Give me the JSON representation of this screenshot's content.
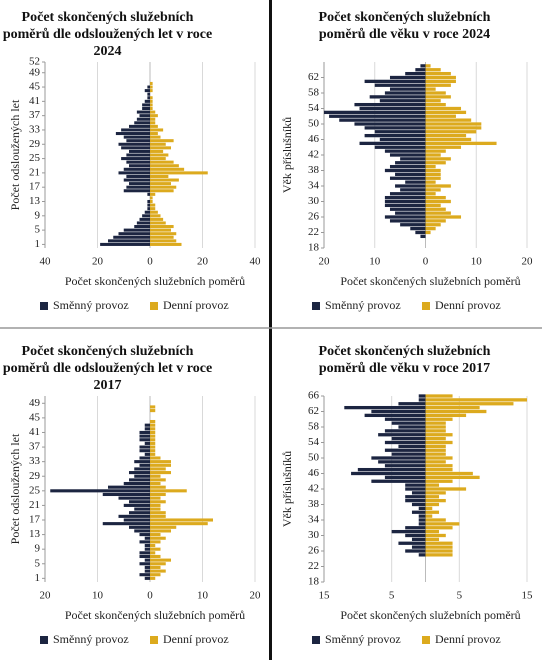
{
  "chart_data": [
    {
      "type": "bar",
      "orientation": "horizontal",
      "title": "Počet skončených služebních poměrů dle odsloužených let v roce 2024",
      "x_label": "Počet skončených služebních poměrů",
      "y_label": "Počet odsloužených let",
      "categories": [
        1,
        2,
        3,
        4,
        5,
        6,
        7,
        8,
        9,
        10,
        11,
        12,
        13,
        14,
        15,
        16,
        17,
        18,
        19,
        20,
        21,
        22,
        23,
        24,
        25,
        26,
        27,
        28,
        29,
        30,
        31,
        32,
        33,
        34,
        35,
        36,
        37,
        38,
        39,
        40,
        41,
        42,
        43,
        44,
        45,
        46
      ],
      "series": [
        {
          "name": "Směnný provoz",
          "color": "#1c2541",
          "values": [
            -19,
            -16,
            -14,
            -12,
            -10,
            -6,
            -5,
            -4,
            -3,
            -2,
            -1,
            -1,
            -1,
            0,
            -1,
            -10,
            -9,
            -8,
            -10,
            -9,
            -12,
            -10,
            -8,
            -9,
            -11,
            -9,
            -8,
            -11,
            -12,
            -9,
            -10,
            -13,
            -11,
            -8,
            -6,
            -5,
            -4,
            -5,
            -3,
            -3,
            -2,
            -1,
            -1,
            -2,
            -1,
            0
          ]
        },
        {
          "name": "Denní provoz",
          "color": "#dcaa1e",
          "values": [
            12,
            10,
            9,
            10,
            8,
            9,
            6,
            5,
            4,
            3,
            2,
            2,
            1,
            1,
            2,
            9,
            10,
            8,
            11,
            7,
            22,
            13,
            11,
            9,
            6,
            7,
            5,
            8,
            6,
            9,
            4,
            3,
            5,
            3,
            2,
            2,
            3,
            2,
            1,
            1,
            1,
            1,
            0,
            1,
            1,
            1
          ]
        }
      ],
      "xlim": [
        -40,
        40
      ],
      "xticks": [
        {
          "value": -40,
          "label": "40"
        },
        {
          "value": -20,
          "label": "20"
        },
        0,
        20,
        40
      ],
      "ylim": [
        0,
        52
      ],
      "yticks": [
        1,
        5,
        9,
        13,
        17,
        21,
        25,
        29,
        33,
        37,
        41,
        45,
        49,
        52
      ],
      "grid": true
    },
    {
      "type": "bar",
      "orientation": "horizontal",
      "title": "Počet skončených služebních poměrů dle věku v roce 2024",
      "x_label": "Počet skončených služebních poměrů",
      "y_label": "Věk příslušníků",
      "categories": [
        21,
        22,
        23,
        24,
        25,
        26,
        27,
        28,
        29,
        30,
        31,
        32,
        33,
        34,
        35,
        36,
        37,
        38,
        39,
        40,
        41,
        42,
        43,
        44,
        45,
        46,
        47,
        48,
        49,
        50,
        51,
        52,
        53,
        54,
        55,
        56,
        57,
        58,
        59,
        60,
        61,
        62,
        63,
        64,
        65
      ],
      "series": [
        {
          "name": "Směnný provoz",
          "color": "#1c2541",
          "values": [
            -1,
            -2,
            -3,
            -5,
            -7,
            -8,
            -6,
            -7,
            -8,
            -8,
            -8,
            -7,
            -5,
            -6,
            -4,
            -7,
            -6,
            -8,
            -7,
            -6,
            -5,
            -7,
            -8,
            -10,
            -13,
            -9,
            -12,
            -10,
            -12,
            -14,
            -17,
            -19,
            -20,
            -13,
            -14,
            -9,
            -11,
            -8,
            -7,
            -10,
            -12,
            -7,
            -4,
            -2,
            -1
          ]
        },
        {
          "name": "Denní provoz",
          "color": "#dcaa1e",
          "values": [
            0,
            1,
            2,
            3,
            4,
            7,
            5,
            4,
            3,
            5,
            4,
            2,
            3,
            5,
            2,
            3,
            3,
            3,
            2,
            4,
            5,
            3,
            4,
            7,
            14,
            9,
            8,
            10,
            11,
            11,
            9,
            6,
            8,
            7,
            4,
            3,
            5,
            4,
            2,
            5,
            6,
            6,
            5,
            3,
            1
          ]
        }
      ],
      "xlim": [
        -20,
        20
      ],
      "xticks": [
        {
          "value": -20,
          "label": "20"
        },
        {
          "value": -10,
          "label": "10"
        },
        0,
        10,
        20
      ],
      "ylim": [
        18,
        66
      ],
      "yticks": [
        18,
        22,
        26,
        30,
        34,
        38,
        42,
        46,
        50,
        54,
        58,
        62
      ],
      "grid": true
    },
    {
      "type": "bar",
      "orientation": "horizontal",
      "title": "Počet skončených služebních poměrů dle odsloužených let v roce 2017",
      "x_label": "Počet skončených služebních poměrů",
      "y_label": "Počet odsloužených let",
      "categories": [
        1,
        2,
        3,
        4,
        5,
        6,
        7,
        8,
        9,
        10,
        11,
        12,
        13,
        14,
        15,
        16,
        17,
        18,
        19,
        20,
        21,
        22,
        23,
        24,
        25,
        26,
        27,
        28,
        29,
        30,
        31,
        32,
        33,
        34,
        35,
        36,
        37,
        38,
        39,
        40,
        41,
        42,
        43,
        44,
        45,
        46,
        47,
        48
      ],
      "series": [
        {
          "name": "Směnný provoz",
          "color": "#1c2541",
          "values": [
            -1,
            -2,
            -1,
            -1,
            -2,
            -1,
            -2,
            -2,
            -1,
            -1,
            -2,
            -1,
            -2,
            -3,
            -4,
            -9,
            -5,
            -6,
            -4,
            -3,
            -5,
            -4,
            -6,
            -9,
            -19,
            -8,
            -5,
            -4,
            -3,
            -4,
            -3,
            -2,
            -3,
            -2,
            -1,
            -2,
            -2,
            -1,
            -2,
            -2,
            -2,
            -1,
            -1,
            0,
            0,
            0,
            0,
            0
          ]
        },
        {
          "name": "Denní provoz",
          "color": "#dcaa1e",
          "values": [
            1,
            2,
            3,
            2,
            3,
            4,
            2,
            1,
            2,
            1,
            2,
            3,
            2,
            4,
            5,
            11,
            12,
            3,
            3,
            2,
            2,
            3,
            2,
            3,
            7,
            3,
            2,
            3,
            2,
            4,
            3,
            4,
            4,
            2,
            1,
            1,
            1,
            1,
            1,
            1,
            1,
            1,
            1,
            1,
            0,
            0,
            1,
            1
          ]
        }
      ],
      "xlim": [
        -20,
        20
      ],
      "xticks": [
        {
          "value": -20,
          "label": "20"
        },
        {
          "value": -10,
          "label": "10"
        },
        0,
        10,
        20
      ],
      "ylim": [
        0,
        51
      ],
      "yticks": [
        1,
        5,
        9,
        13,
        17,
        21,
        25,
        29,
        33,
        37,
        41,
        45,
        49
      ],
      "grid": true
    },
    {
      "type": "bar",
      "orientation": "horizontal",
      "title": "Počet skončených služebních poměrů dle věku v roce 2017",
      "x_label": "Počet skončených služebních poměrů",
      "y_label": "Věk příslušníků",
      "categories": [
        25,
        26,
        27,
        28,
        29,
        30,
        31,
        32,
        33,
        34,
        35,
        36,
        37,
        38,
        39,
        40,
        41,
        42,
        43,
        44,
        45,
        46,
        47,
        48,
        49,
        50,
        51,
        52,
        53,
        54,
        55,
        56,
        57,
        58,
        59,
        60,
        61,
        62,
        63,
        64,
        65,
        66
      ],
      "series": [
        {
          "name": "Směnný provoz",
          "color": "#1c2541",
          "values": [
            -1,
            -3,
            -2,
            -4,
            -2,
            -3,
            -5,
            -3,
            -1,
            -1,
            -1,
            -2,
            -1,
            -2,
            -3,
            -3,
            -2,
            -3,
            -3,
            -8,
            -6,
            -11,
            -10,
            -6,
            -7,
            -8,
            -5,
            -6,
            -4,
            -6,
            -5,
            -7,
            -6,
            -4,
            -5,
            -6,
            -9,
            -8,
            -12,
            -4,
            -1,
            -1
          ]
        },
        {
          "name": "Denní provoz",
          "color": "#dcaa1e",
          "values": [
            4,
            4,
            4,
            4,
            2,
            3,
            2,
            4,
            5,
            3,
            1,
            2,
            1,
            2,
            3,
            2,
            3,
            6,
            2,
            4,
            8,
            7,
            4,
            4,
            3,
            4,
            3,
            3,
            3,
            4,
            3,
            4,
            3,
            3,
            3,
            4,
            6,
            9,
            8,
            13,
            15,
            4
          ]
        }
      ],
      "xlim": [
        -15,
        15
      ],
      "xticks": [
        {
          "value": -15,
          "label": "15"
        },
        {
          "value": -5,
          "label": "5"
        },
        5,
        15
      ],
      "ylim": [
        18,
        66
      ],
      "yticks": [
        18,
        22,
        26,
        30,
        34,
        38,
        42,
        46,
        50,
        54,
        58,
        62,
        66
      ],
      "grid": true
    }
  ]
}
